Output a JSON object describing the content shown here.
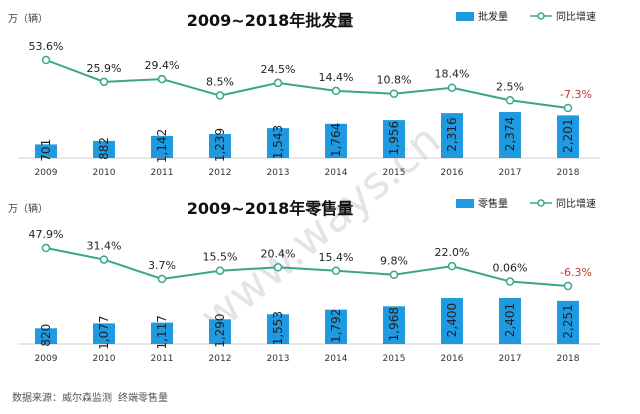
{
  "watermark": "www.ways.cn",
  "footer": {
    "source_label": "数据来源：威尔森监测",
    "source_desc": "终端零售量"
  },
  "colors": {
    "bar": "#1f9ae0",
    "line": "#3aa58f",
    "neg": "#c0392b",
    "label": "#333333"
  },
  "chart_data": [
    {
      "type": "bar",
      "title": "2009~2018年批发量",
      "unit": "万（辆）",
      "legend": {
        "bar": "批发量",
        "line": "同比增速"
      },
      "categories": [
        "2009",
        "2010",
        "2011",
        "2012",
        "2013",
        "2014",
        "2015",
        "2016",
        "2017",
        "2018"
      ],
      "bar_labels": [
        "701",
        "882",
        "1,142",
        "1,239",
        "1,543",
        "1,764",
        "1,956",
        "2,316",
        "2,374",
        "2,201"
      ],
      "growth_labels": [
        "53.6%",
        "25.9%",
        "29.4%",
        "8.5%",
        "24.5%",
        "14.4%",
        "10.8%",
        "18.4%",
        "2.5%",
        "-7.3%"
      ],
      "series": [
        {
          "name": "批发量",
          "kind": "bar",
          "values": [
            701,
            882,
            1142,
            1239,
            1543,
            1764,
            1956,
            2316,
            2374,
            2201
          ]
        },
        {
          "name": "同比增速",
          "kind": "line",
          "values": [
            53.6,
            25.9,
            29.4,
            8.5,
            24.5,
            14.4,
            10.8,
            18.4,
            2.5,
            -7.3
          ]
        }
      ]
    },
    {
      "type": "bar",
      "title": "2009~2018年零售量",
      "unit": "万（辆）",
      "legend": {
        "bar": "零售量",
        "line": "同比增速"
      },
      "categories": [
        "2009",
        "2010",
        "2011",
        "2012",
        "2013",
        "2014",
        "2015",
        "2016",
        "2017",
        "2018"
      ],
      "bar_labels": [
        "820",
        "1,077",
        "1,117",
        "1,290",
        "1,553",
        "1,792",
        "1,968",
        "2,400",
        "2,401",
        "2,251"
      ],
      "growth_labels": [
        "47.9%",
        "31.4%",
        "3.7%",
        "15.5%",
        "20.4%",
        "15.4%",
        "9.8%",
        "22.0%",
        "0.06%",
        "-6.3%"
      ],
      "series": [
        {
          "name": "零售量",
          "kind": "bar",
          "values": [
            820,
            1077,
            1117,
            1290,
            1553,
            1792,
            1968,
            2400,
            2401,
            2251
          ]
        },
        {
          "name": "同比增速",
          "kind": "line",
          "values": [
            47.9,
            31.4,
            3.7,
            15.5,
            20.4,
            15.4,
            9.8,
            22.0,
            0.06,
            -6.3
          ]
        }
      ]
    }
  ]
}
